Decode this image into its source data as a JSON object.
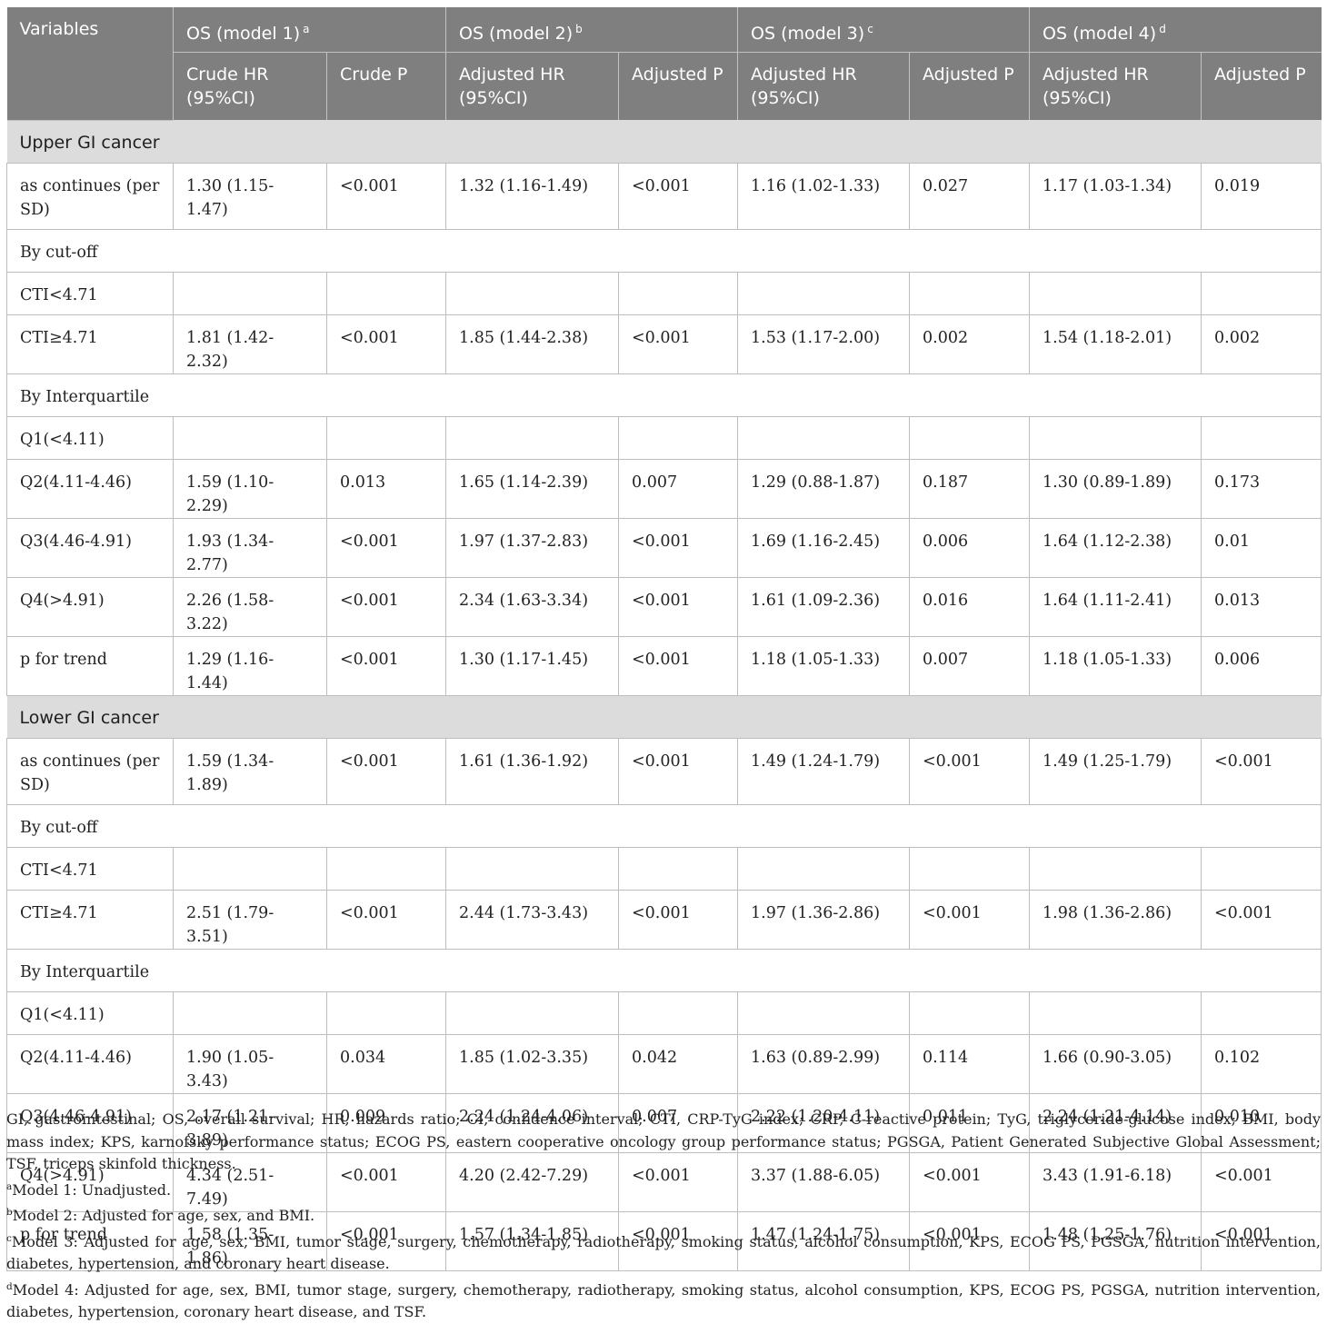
{
  "header": {
    "variables": "Variables",
    "groups": [
      {
        "label": "OS (model 1)",
        "sup": "a"
      },
      {
        "label": "OS (model 2)",
        "sup": "b"
      },
      {
        "label": "OS (model 3)",
        "sup": "c"
      },
      {
        "label": "OS (model 4)",
        "sup": "d"
      }
    ],
    "subcols": [
      {
        "hr": "Crude HR (95%CI)",
        "p": "Crude P"
      },
      {
        "hr": "Adjusted HR (95%CI)",
        "p": "Adjusted P"
      },
      {
        "hr": "Adjusted HR (95%CI)",
        "p": "Adjusted P"
      },
      {
        "hr": "Adjusted HR (95%CI)",
        "p": "Adjusted P"
      }
    ]
  },
  "sections": [
    {
      "title": "Upper GI cancer",
      "rows": [
        {
          "label": "as continues (per SD)",
          "cells": [
            "1.30 (1.15-1.47)",
            "<0.001",
            "1.32 (1.16-1.49)",
            "<0.001",
            "1.16 (1.02-1.33)",
            "0.027",
            "1.17 (1.03-1.34)",
            "0.019"
          ]
        },
        {
          "label": "By cut-off",
          "span": true
        },
        {
          "label": "CTI<4.71",
          "cells": [
            "",
            "",
            "",
            "",
            "",
            "",
            "",
            ""
          ]
        },
        {
          "label": "CTI≥4.71",
          "cells": [
            "1.81 (1.42-2.32)",
            "<0.001",
            "1.85 (1.44-2.38)",
            "<0.001",
            "1.53 (1.17-2.00)",
            "0.002",
            "1.54 (1.18-2.01)",
            "0.002"
          ]
        },
        {
          "label": "By Interquartile",
          "span": true
        },
        {
          "label": "Q1(<4.11)",
          "cells": [
            "",
            "",
            "",
            "",
            "",
            "",
            "",
            ""
          ]
        },
        {
          "label": "Q2(4.11-4.46)",
          "cells": [
            "1.59 (1.10-2.29)",
            "0.013",
            "1.65 (1.14-2.39)",
            "0.007",
            "1.29 (0.88-1.87)",
            "0.187",
            "1.30 (0.89-1.89)",
            "0.173"
          ]
        },
        {
          "label": "Q3(4.46-4.91)",
          "cells": [
            "1.93 (1.34-2.77)",
            "<0.001",
            "1.97 (1.37-2.83)",
            "<0.001",
            "1.69 (1.16-2.45)",
            "0.006",
            "1.64 (1.12-2.38)",
            "0.01"
          ]
        },
        {
          "label": "Q4(>4.91)",
          "cells": [
            "2.26 (1.58-3.22)",
            "<0.001",
            "2.34 (1.63-3.34)",
            "<0.001",
            "1.61 (1.09-2.36)",
            "0.016",
            "1.64 (1.11-2.41)",
            "0.013"
          ]
        },
        {
          "label": "p for trend",
          "cells": [
            "1.29 (1.16-1.44)",
            "<0.001",
            "1.30 (1.17-1.45)",
            "<0.001",
            "1.18 (1.05-1.33)",
            "0.007",
            "1.18 (1.05-1.33)",
            "0.006"
          ]
        }
      ]
    },
    {
      "title": "Lower GI cancer",
      "rows": [
        {
          "label": "as continues (per SD)",
          "cells": [
            "1.59 (1.34-1.89)",
            "<0.001",
            "1.61 (1.36-1.92)",
            "<0.001",
            "1.49 (1.24-1.79)",
            "<0.001",
            "1.49 (1.25-1.79)",
            "<0.001"
          ]
        },
        {
          "label": "By cut-off",
          "span": true
        },
        {
          "label": "CTI<4.71",
          "cells": [
            "",
            "",
            "",
            "",
            "",
            "",
            "",
            ""
          ]
        },
        {
          "label": "CTI≥4.71",
          "cells": [
            "2.51 (1.79-3.51)",
            "<0.001",
            "2.44 (1.73-3.43)",
            "<0.001",
            "1.97 (1.36-2.86)",
            "<0.001",
            "1.98 (1.36-2.86)",
            "<0.001"
          ]
        },
        {
          "label": "By Interquartile",
          "span": true
        },
        {
          "label": "Q1(<4.11)",
          "cells": [
            "",
            "",
            "",
            "",
            "",
            "",
            "",
            ""
          ]
        },
        {
          "label": "Q2(4.11-4.46)",
          "cells": [
            "1.90 (1.05-3.43)",
            "0.034",
            "1.85 (1.02-3.35)",
            "0.042",
            "1.63 (0.89-2.99)",
            "0.114",
            "1.66 (0.90-3.05)",
            "0.102"
          ]
        },
        {
          "label": "Q3(4.46-4.91)",
          "cells": [
            "2.17 (1.21-3.89)",
            "0.009",
            "2.24 (1.24-4.06)",
            "0.007",
            "2.22 (1.20-4.11)",
            "0.011",
            "2.24 (1.21-4.14)",
            "0.010"
          ]
        },
        {
          "label": "Q4(>4.91)",
          "cells": [
            "4.34 (2.51-7.49)",
            "<0.001",
            "4.20 (2.42-7.29)",
            "<0.001",
            "3.37 (1.88-6.05)",
            "<0.001",
            "3.43 (1.91-6.18)",
            "<0.001"
          ]
        },
        {
          "label": "p for trend",
          "cells": [
            "1.58 (1.35-1.86)",
            "<0.001",
            "1.57 (1.34-1.85)",
            "<0.001",
            "1.47 (1.24-1.75)",
            "<0.001",
            "1.48 (1.25-1.76)",
            "<0.001"
          ]
        }
      ]
    }
  ],
  "footnotes": {
    "abbreviations": "GI, gastrointestinal; OS, overall survival; HR, hazards ratio; CI, confidence interval; CTI, CRP-TyG index; CRP, C-reactive protein; TyG, triglyceride-glucose index; BMI, body mass index; KPS, karnofsky performance status; ECOG PS, eastern cooperative oncology group performance status; PGSGA, Patient Generated Subjective Global Assessment; TSF, triceps skinfold thickness.",
    "notes": [
      {
        "sup": "a",
        "text": "Model 1: Unadjusted."
      },
      {
        "sup": "b",
        "text": "Model 2: Adjusted for age, sex, and BMI."
      },
      {
        "sup": "c",
        "text": "Model 3: Adjusted for age, sex, BMI, tumor stage, surgery, chemotherapy, radiotherapy, smoking status, alcohol consumption, KPS, ECOG PS, PGSGA, nutrition intervention, diabetes, hypertension, and coronary heart disease."
      },
      {
        "sup": "d",
        "text": "Model 4: Adjusted for age, sex, BMI, tumor stage, surgery, chemotherapy, radiotherapy, smoking status, alcohol consumption, KPS, ECOG PS, PGSGA, nutrition intervention, diabetes, hypertension, coronary heart disease, and TSF."
      }
    ]
  }
}
